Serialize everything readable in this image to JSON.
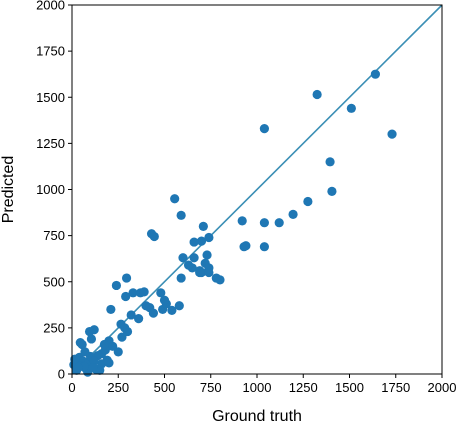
{
  "chart_data": {
    "type": "scatter",
    "title": "",
    "xlabel": "Ground truth",
    "ylabel": "Predicted",
    "xlim": [
      0,
      2000
    ],
    "ylim": [
      0,
      2000
    ],
    "xticks": [
      "0",
      "250",
      "500",
      "750",
      "1000",
      "1250",
      "1500",
      "1750",
      "2000"
    ],
    "yticks": [
      "0",
      "250",
      "500",
      "750",
      "1000",
      "1250",
      "1500",
      "1750",
      "2000"
    ],
    "grid": false,
    "legend": "none",
    "colors": {
      "points": "#1f77b4",
      "reference_line": "#3b8fb5"
    },
    "reference_line": {
      "x": [
        0,
        2000
      ],
      "y": [
        0,
        2000
      ]
    },
    "points": {
      "x": [
        1640,
        1325,
        1510,
        1040,
        1730,
        1395,
        1405,
        1040,
        1275,
        1195,
        1120,
        920,
        940,
        1040,
        555,
        590,
        430,
        445,
        700,
        740,
        710,
        660,
        600,
        730,
        780,
        930,
        720,
        690,
        700,
        740,
        590,
        650,
        690,
        630,
        660,
        740,
        800,
        240,
        295,
        290,
        330,
        210,
        265,
        370,
        390,
        480,
        490,
        540,
        580,
        510,
        500,
        400,
        420,
        440,
        360,
        320,
        270,
        285,
        300,
        160,
        200,
        220,
        250,
        120,
        95,
        55,
        140,
        180,
        30,
        10,
        40,
        60,
        90,
        110,
        75,
        130,
        160,
        50,
        25,
        100,
        120,
        200,
        70,
        45,
        15,
        85,
        150,
        175,
        65,
        115,
        105,
        35,
        190
      ],
      "y": [
        1625,
        1515,
        1440,
        1330,
        1300,
        1150,
        990,
        820,
        935,
        865,
        820,
        830,
        695,
        690,
        950,
        860,
        760,
        745,
        720,
        740,
        800,
        715,
        630,
        645,
        520,
        690,
        600,
        560,
        550,
        575,
        520,
        575,
        550,
        590,
        630,
        550,
        510,
        480,
        520,
        420,
        440,
        350,
        270,
        440,
        445,
        440,
        350,
        345,
        370,
        380,
        400,
        370,
        360,
        330,
        300,
        320,
        200,
        250,
        230,
        110,
        180,
        150,
        120,
        240,
        230,
        160,
        100,
        130,
        80,
        50,
        90,
        70,
        60,
        40,
        30,
        25,
        55,
        45,
        20,
        95,
        70,
        60,
        120,
        170,
        80,
        10,
        20,
        160,
        40,
        35,
        190,
        35,
        75
      ]
    }
  }
}
